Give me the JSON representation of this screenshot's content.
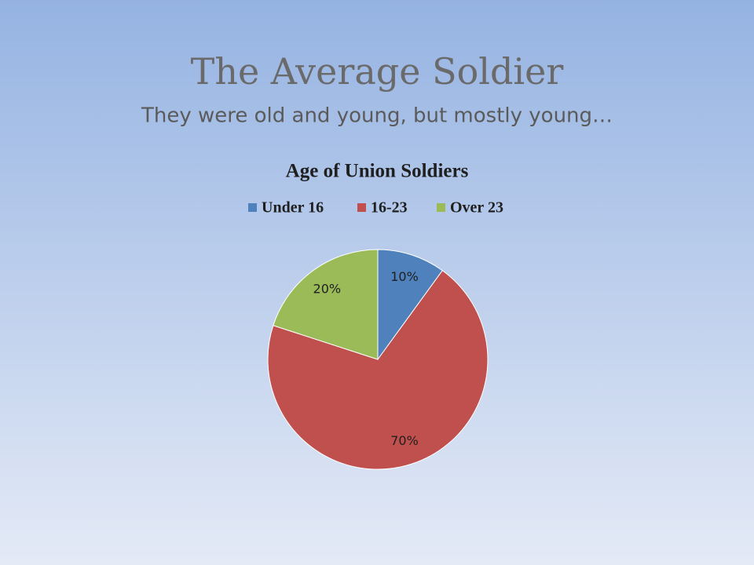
{
  "slide": {
    "title": "The Average Soldier",
    "subtitle": "They were old and young, but mostly young…"
  },
  "chart_data": {
    "type": "pie",
    "title": "Age of Union Soldiers",
    "categories": [
      "Under 16",
      "16-23",
      "Over 23"
    ],
    "values": [
      10,
      70,
      20
    ],
    "value_labels": [
      "10%",
      "70%",
      "20%"
    ],
    "colors": [
      "#4f81bd",
      "#c0504d",
      "#9bbb59"
    ],
    "legend": "top"
  }
}
